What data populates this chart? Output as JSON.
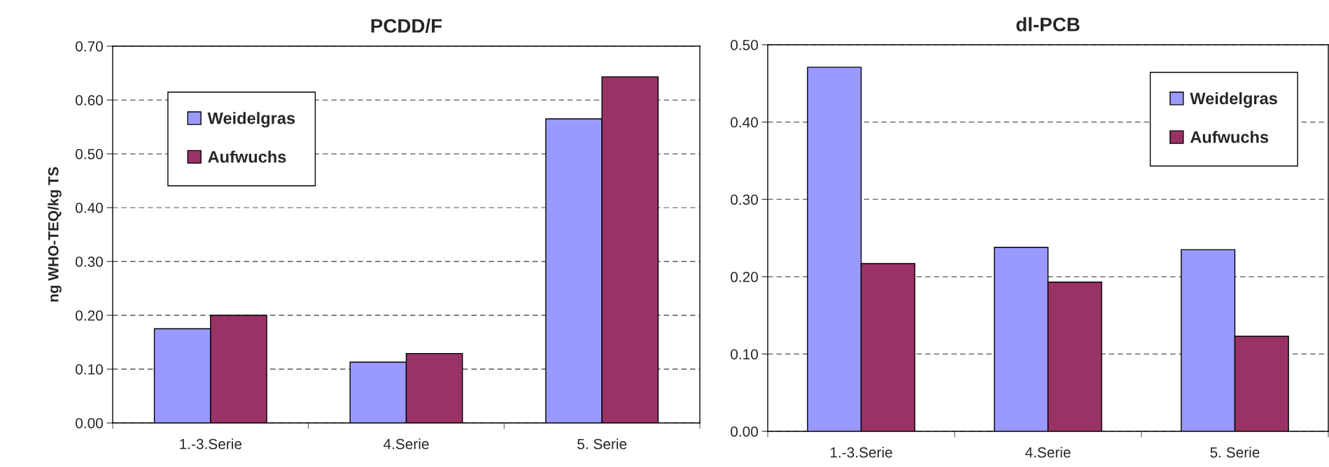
{
  "chart_data": [
    {
      "type": "bar",
      "title": "PCDD/F",
      "ylabel": "ng WHO-TEQ/kg TS",
      "categories": [
        "1.-3.Serie",
        "4.Serie",
        "5. Serie"
      ],
      "series": [
        {
          "name": "Weidelgras",
          "color": "#9999ff",
          "values": [
            0.175,
            0.113,
            0.565
          ]
        },
        {
          "name": "Aufwuchs",
          "color": "#993366",
          "values": [
            0.2,
            0.129,
            0.643
          ]
        }
      ],
      "ylim": [
        0,
        0.7
      ],
      "yticks": [
        {
          "value": 0,
          "label": "0.00"
        },
        {
          "value": 0.1,
          "label": "0.10"
        },
        {
          "value": 0.2,
          "label": "0.20"
        },
        {
          "value": 0.3,
          "label": "0.30"
        },
        {
          "value": 0.4,
          "label": "0.40"
        },
        {
          "value": 0.5,
          "label": "0.50"
        },
        {
          "value": 0.6,
          "label": "0.60"
        },
        {
          "value": 0.7,
          "label": "0.70"
        }
      ],
      "grid": "y",
      "legend": "top left"
    },
    {
      "type": "bar",
      "title": "dl-PCB",
      "categories": [
        "1.-3.Serie",
        "4.Serie",
        "5. Serie"
      ],
      "series": [
        {
          "name": "Weidelgras",
          "color": "#9999ff",
          "values": [
            0.471,
            0.238,
            0.235
          ]
        },
        {
          "name": "Aufwuchs",
          "color": "#993366",
          "values": [
            0.217,
            0.193,
            0.123
          ]
        }
      ],
      "ylim": [
        0,
        0.5
      ],
      "yticks": [
        {
          "value": 0,
          "label": "0.00"
        },
        {
          "value": 0.1,
          "label": "0.10"
        },
        {
          "value": 0.2,
          "label": "0.20"
        },
        {
          "value": 0.3,
          "label": "0.30"
        },
        {
          "value": 0.4,
          "label": "0.40"
        },
        {
          "value": 0.5,
          "label": "0.50"
        }
      ],
      "grid": "y",
      "legend": "top right"
    }
  ]
}
